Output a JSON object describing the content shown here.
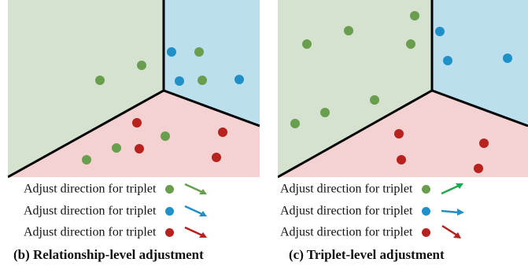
{
  "colors": {
    "green_region": "#d5e2cf",
    "blue_region": "#bcdfee",
    "red_region": "#f4d2d1",
    "green_dot": "#6a9e4f",
    "blue_dot": "#1f90c8",
    "red_dot": "#b8211d",
    "border": "#000000"
  },
  "panels": [
    {
      "id": "b",
      "legend": [
        {
          "text": "Adjust direction for triplet",
          "dot_color": "#6a9e4f",
          "arrow_color": "#6a9e4f",
          "arrow_angle_deg": 30
        },
        {
          "text": "Adjust direction for triplet",
          "dot_color": "#1f90c8",
          "arrow_color": "#1f90c8",
          "arrow_angle_deg": 30
        },
        {
          "text": "Adjust direction for triplet",
          "dot_color": "#b8211d",
          "arrow_color": "#b8211d",
          "arrow_angle_deg": 30
        }
      ],
      "caption": "(b) Relationship-level adjustment"
    },
    {
      "id": "c",
      "legend": [
        {
          "text": "Adjust direction for triplet",
          "dot_color": "#6a9e4f",
          "arrow_color": "#1fa84f",
          "arrow_angle_deg": -30
        },
        {
          "text": "Adjust direction for triplet",
          "dot_color": "#1f90c8",
          "arrow_color": "#1f90c8",
          "arrow_angle_deg": 0
        },
        {
          "text": "Adjust direction for triplet",
          "dot_color": "#b8211d",
          "arrow_color": "#b8211d",
          "arrow_angle_deg": 40
        }
      ],
      "caption": "(c) Triplet-level adjustment"
    }
  ]
}
